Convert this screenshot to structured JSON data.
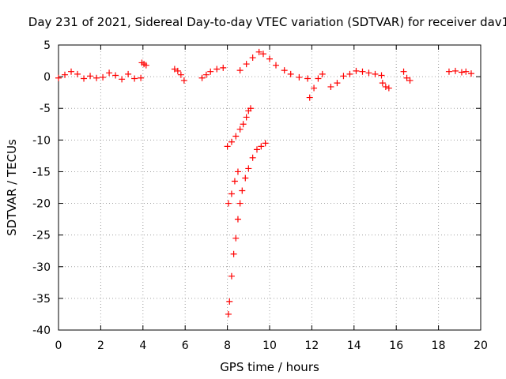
{
  "chart_data": {
    "type": "scatter",
    "title": "Day 231 of 2021, Sidereal Day-to-day VTEC variation (SDTVAR) for receiver dav1",
    "xlabel": "GPS time / hours",
    "ylabel": "SDTVAR / TECUs",
    "xlim": [
      0,
      20
    ],
    "ylim": [
      -40,
      5
    ],
    "xticks": [
      0,
      2,
      4,
      6,
      8,
      10,
      12,
      14,
      16,
      18,
      20
    ],
    "yticks": [
      5,
      0,
      -5,
      -10,
      -15,
      -20,
      -25,
      -30,
      -35,
      -40
    ],
    "grid": true,
    "marker": "+",
    "series_color": "#ff0000",
    "segments": [
      {
        "name": "early-band",
        "points": [
          [
            0.0,
            -0.2
          ],
          [
            0.3,
            0.3
          ],
          [
            0.6,
            0.8
          ],
          [
            0.9,
            0.4
          ],
          [
            1.2,
            -0.3
          ],
          [
            1.5,
            0.1
          ],
          [
            1.8,
            -0.2
          ],
          [
            2.1,
            -0.1
          ],
          [
            2.4,
            0.6
          ],
          [
            2.7,
            0.2
          ],
          [
            3.0,
            -0.4
          ],
          [
            3.3,
            0.4
          ],
          [
            3.6,
            -0.3
          ],
          [
            3.9,
            -0.2
          ]
        ]
      },
      {
        "name": "spot-4h",
        "points": [
          [
            3.95,
            2.2
          ],
          [
            4.05,
            2.0
          ],
          [
            4.15,
            1.8
          ]
        ]
      },
      {
        "name": "band-5-6h",
        "points": [
          [
            5.5,
            1.2
          ],
          [
            5.65,
            0.9
          ],
          [
            5.8,
            0.3
          ],
          [
            5.95,
            -0.6
          ]
        ]
      },
      {
        "name": "band-7h",
        "points": [
          [
            6.8,
            -0.2
          ],
          [
            7.0,
            0.3
          ],
          [
            7.2,
            0.8
          ],
          [
            7.5,
            1.2
          ],
          [
            7.8,
            1.4
          ]
        ]
      },
      {
        "name": "upper-branch",
        "points": [
          [
            8.0,
            -11.0
          ],
          [
            8.2,
            -10.3
          ],
          [
            8.4,
            -9.4
          ],
          [
            8.6,
            -8.3
          ],
          [
            8.75,
            -7.5
          ],
          [
            8.9,
            -6.4
          ],
          [
            9.0,
            -5.4
          ],
          [
            9.1,
            -5.0
          ]
        ]
      },
      {
        "name": "steep-branch",
        "points": [
          [
            8.05,
            -37.5
          ],
          [
            8.1,
            -35.5
          ],
          [
            8.2,
            -31.5
          ],
          [
            8.3,
            -28.0
          ],
          [
            8.4,
            -25.5
          ],
          [
            8.5,
            -22.5
          ],
          [
            8.6,
            -20.0
          ],
          [
            8.7,
            -18.0
          ],
          [
            8.85,
            -16.0
          ],
          [
            9.0,
            -14.5
          ],
          [
            9.2,
            -12.8
          ],
          [
            9.4,
            -11.5
          ],
          [
            9.6,
            -11.0
          ],
          [
            9.8,
            -10.5
          ]
        ]
      },
      {
        "name": "lower-left-start",
        "points": [
          [
            8.05,
            -20.0
          ],
          [
            8.2,
            -18.5
          ],
          [
            8.35,
            -16.5
          ],
          [
            8.5,
            -15.0
          ]
        ]
      },
      {
        "name": "main-arc",
        "points": [
          [
            8.6,
            1.0
          ],
          [
            8.9,
            2.0
          ],
          [
            9.2,
            3.0
          ],
          [
            9.5,
            3.9
          ],
          [
            9.7,
            3.6
          ],
          [
            10.0,
            2.8
          ],
          [
            10.3,
            1.8
          ],
          [
            10.7,
            1.0
          ],
          [
            11.0,
            0.4
          ],
          [
            11.4,
            -0.1
          ],
          [
            11.8,
            -0.3
          ]
        ]
      },
      {
        "name": "drop-12h",
        "points": [
          [
            11.9,
            -3.3
          ],
          [
            12.1,
            -1.8
          ],
          [
            12.3,
            -0.3
          ],
          [
            12.5,
            0.4
          ]
        ]
      },
      {
        "name": "band-13-15h",
        "points": [
          [
            12.9,
            -1.6
          ],
          [
            13.2,
            -1.0
          ],
          [
            13.5,
            0.1
          ],
          [
            13.8,
            0.4
          ],
          [
            14.1,
            0.9
          ],
          [
            14.4,
            0.8
          ],
          [
            14.7,
            0.6
          ],
          [
            15.0,
            0.4
          ],
          [
            15.3,
            0.2
          ]
        ]
      },
      {
        "name": "dip-15.5h",
        "points": [
          [
            15.35,
            -1.0
          ],
          [
            15.5,
            -1.6
          ],
          [
            15.65,
            -1.8
          ]
        ]
      },
      {
        "name": "band-16.5h",
        "points": [
          [
            16.35,
            0.8
          ],
          [
            16.5,
            -0.2
          ],
          [
            16.65,
            -0.6
          ]
        ]
      },
      {
        "name": "band-19h",
        "points": [
          [
            18.5,
            0.8
          ],
          [
            18.8,
            0.9
          ],
          [
            19.1,
            0.7
          ],
          [
            19.3,
            0.8
          ],
          [
            19.55,
            0.5
          ]
        ]
      }
    ]
  }
}
